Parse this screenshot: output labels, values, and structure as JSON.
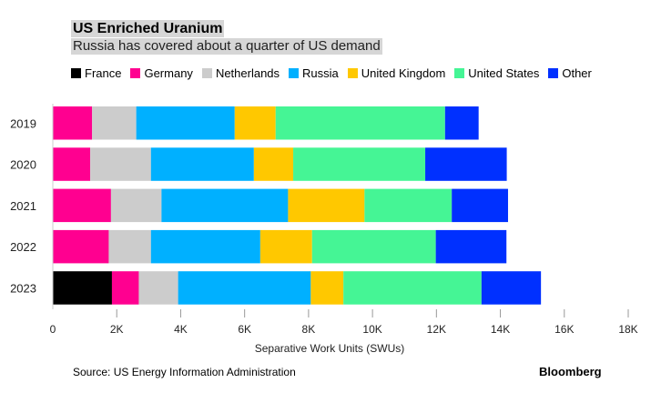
{
  "chart_data": {
    "type": "bar",
    "orientation": "horizontal",
    "stacked": true,
    "title": "US Enriched Uranium",
    "subtitle": "Russia has covered about a quarter of US demand",
    "xlabel": "Separative Work Units (SWUs)",
    "ylabel": "",
    "xlim": [
      0,
      18000
    ],
    "xticks": [
      0,
      2000,
      4000,
      6000,
      8000,
      10000,
      12000,
      14000,
      16000,
      18000
    ],
    "xtick_labels": [
      "0",
      "2K",
      "4K",
      "6K",
      "8K",
      "10K",
      "12K",
      "14K",
      "16K",
      "18K"
    ],
    "categories": [
      "2019",
      "2020",
      "2021",
      "2022",
      "2023"
    ],
    "legend_position": "top-left",
    "series": [
      {
        "name": "France",
        "color": "#000000",
        "values": [
          0,
          0,
          0,
          0,
          1850
        ]
      },
      {
        "name": "Germany",
        "color": "#ff0090",
        "values": [
          1230,
          1170,
          1820,
          1750,
          840
        ]
      },
      {
        "name": "Netherlands",
        "color": "#cccccc",
        "values": [
          1380,
          1900,
          1580,
          1320,
          1230
        ]
      },
      {
        "name": "Russia",
        "color": "#00b0ff",
        "values": [
          3080,
          3220,
          3960,
          3420,
          4150
        ]
      },
      {
        "name": "United Kingdom",
        "color": "#ffc800",
        "values": [
          1280,
          1230,
          2390,
          1620,
          1020
        ]
      },
      {
        "name": "United States",
        "color": "#45f595",
        "values": [
          5300,
          4130,
          2730,
          3870,
          4320
        ]
      },
      {
        "name": "Other",
        "color": "#0030ff",
        "values": [
          1050,
          2550,
          1760,
          2210,
          1860
        ]
      }
    ]
  },
  "footer": {
    "source": "Source: US Energy Information Administration",
    "brand": "Bloomberg"
  }
}
